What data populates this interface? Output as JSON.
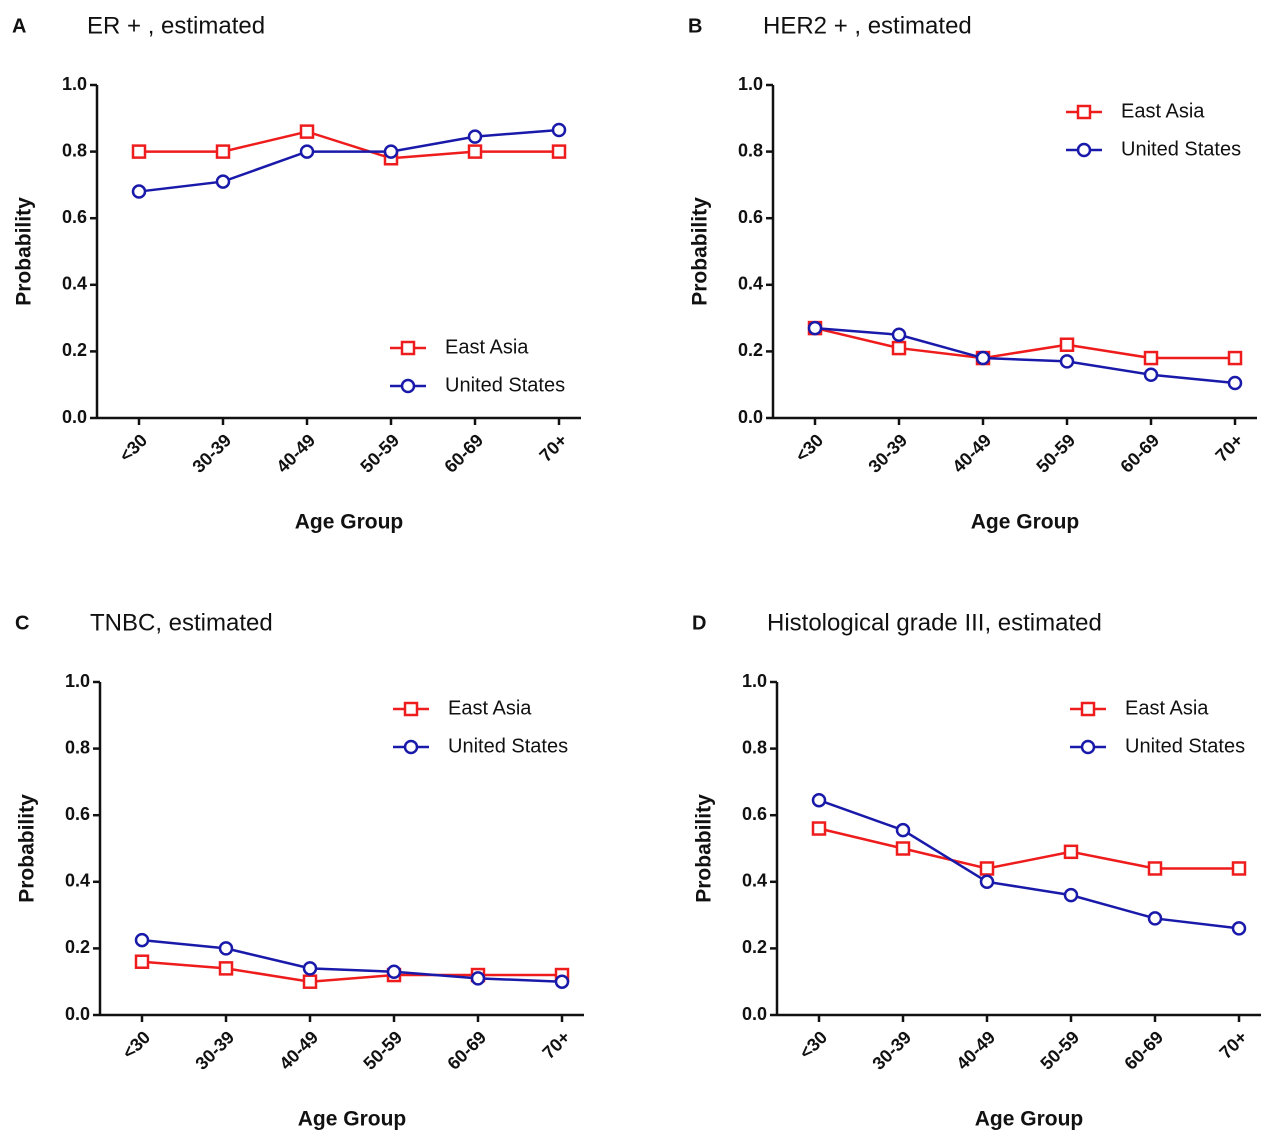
{
  "chart_data": [
    {
      "type": "line",
      "panel": "A",
      "title": "ER + , estimated",
      "x_label": "Age Group",
      "y_label": "Probability",
      "categories": [
        "<30",
        "30-39",
        "40-49",
        "50-59",
        "60-69",
        "70+"
      ],
      "ylim": [
        0,
        1
      ],
      "yticks": [
        {
          "value": 0,
          "label": "0.0"
        },
        0.2,
        0.4,
        0.6,
        0.8,
        {
          "value": 1,
          "label": "1.0"
        }
      ],
      "legend": "lower right",
      "series": [
        {
          "name": "East Asia",
          "color": "#ee1c1c",
          "marker": "square",
          "values": [
            0.8,
            0.8,
            0.86,
            0.78,
            0.8,
            0.8
          ]
        },
        {
          "name": "United States",
          "color": "#1a1aaa",
          "marker": "circle",
          "values": [
            0.68,
            0.71,
            0.8,
            0.8,
            0.845,
            0.865
          ]
        }
      ]
    },
    {
      "type": "line",
      "panel": "B",
      "title": "HER2 + , estimated",
      "x_label": "Age Group",
      "y_label": "Probability",
      "categories": [
        "<30",
        "30-39",
        "40-49",
        "50-59",
        "60-69",
        "70+"
      ],
      "ylim": [
        0,
        1
      ],
      "yticks": [
        {
          "value": 0,
          "label": "0.0"
        },
        0.2,
        0.4,
        0.6,
        0.8,
        {
          "value": 1,
          "label": "1.0"
        }
      ],
      "legend": "upper right",
      "series": [
        {
          "name": "East Asia",
          "color": "#ee1c1c",
          "marker": "square",
          "values": [
            0.27,
            0.21,
            0.18,
            0.22,
            0.18,
            0.18
          ]
        },
        {
          "name": "United States",
          "color": "#1a1aaa",
          "marker": "circle",
          "values": [
            0.27,
            0.25,
            0.18,
            0.17,
            0.13,
            0.105
          ]
        }
      ]
    },
    {
      "type": "line",
      "panel": "C",
      "title": "TNBC, estimated",
      "x_label": "Age Group",
      "y_label": "Probability",
      "categories": [
        "<30",
        "30-39",
        "40-49",
        "50-59",
        "60-69",
        "70+"
      ],
      "ylim": [
        0,
        1
      ],
      "yticks": [
        {
          "value": 0,
          "label": "0.0"
        },
        0.2,
        0.4,
        0.6,
        0.8,
        {
          "value": 1,
          "label": "1.0"
        }
      ],
      "legend": "upper right",
      "series": [
        {
          "name": "East Asia",
          "color": "#ee1c1c",
          "marker": "square",
          "values": [
            0.16,
            0.14,
            0.1,
            0.12,
            0.12,
            0.12
          ]
        },
        {
          "name": "United States",
          "color": "#1a1aaa",
          "marker": "circle",
          "values": [
            0.225,
            0.2,
            0.14,
            0.13,
            0.11,
            0.1
          ]
        }
      ]
    },
    {
      "type": "line",
      "panel": "D",
      "title": "Histological grade III, estimated",
      "x_label": "Age Group",
      "y_label": "Probability",
      "categories": [
        "<30",
        "30-39",
        "40-49",
        "50-59",
        "60-69",
        "70+"
      ],
      "ylim": [
        0,
        1
      ],
      "yticks": [
        {
          "value": 0,
          "label": "0.0"
        },
        0.2,
        0.4,
        0.6,
        0.8,
        {
          "value": 1,
          "label": "1.0"
        }
      ],
      "legend": "upper right",
      "series": [
        {
          "name": "East Asia",
          "color": "#ee1c1c",
          "marker": "square",
          "values": [
            0.56,
            0.5,
            0.44,
            0.49,
            0.44,
            0.44
          ]
        },
        {
          "name": "United States",
          "color": "#1a1aaa",
          "marker": "circle",
          "values": [
            0.645,
            0.555,
            0.4,
            0.36,
            0.29,
            0.26
          ]
        }
      ]
    }
  ]
}
